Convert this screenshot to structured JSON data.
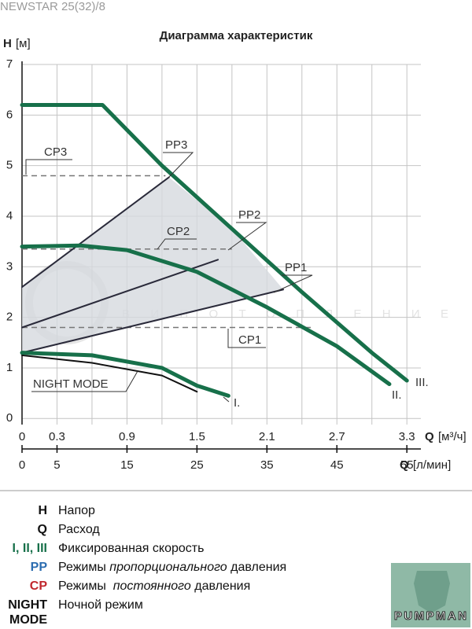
{
  "header": "NEWSTAR 25(32)/8",
  "chart_data": {
    "type": "line",
    "title": "Диаграмма характеристик",
    "ylabel": "H",
    "yunit": "[м]",
    "xlabel": "Q",
    "xunit": "[м³/ч]",
    "x2label": "Q",
    "x2unit": "[л/мин]",
    "xlim": [
      0,
      3.42
    ],
    "ylim": [
      -0.12,
      7
    ],
    "x2lim": [
      0,
      57
    ],
    "xticks": [
      0,
      0.3,
      0.9,
      1.5,
      2.1,
      2.7,
      3.3
    ],
    "x2ticks": [
      0,
      5,
      15,
      25,
      35,
      45,
      55
    ],
    "yticks": [
      0,
      1,
      2,
      3,
      4,
      5,
      6,
      7
    ],
    "xgrid_step": 0.3,
    "grid": true,
    "region_color": "#d6d9df",
    "series": [
      {
        "name": "III.",
        "color": "#17704a",
        "dashed": false,
        "width": 5,
        "x": [
          0,
          0.69,
          1.2,
          1.8,
          2.4,
          3.0,
          3.3
        ],
        "values": [
          6.2,
          6.2,
          5.0,
          3.75,
          2.5,
          1.3,
          0.75
        ]
      },
      {
        "name": "II.",
        "color": "#17704a",
        "dashed": false,
        "width": 5,
        "x": [
          0,
          0.5,
          0.9,
          1.5,
          2.1,
          2.7,
          3.15
        ],
        "values": [
          3.4,
          3.42,
          3.33,
          2.9,
          2.2,
          1.43,
          0.68
        ]
      },
      {
        "name": "I.",
        "color": "#17704a",
        "dashed": false,
        "width": 5,
        "x": [
          0,
          0.6,
          1.2,
          1.5,
          1.77
        ],
        "values": [
          1.3,
          1.25,
          1.0,
          0.65,
          0.45
        ]
      },
      {
        "name": "NIGHT MODE",
        "color": "#111111",
        "dashed": false,
        "width": 2,
        "x": [
          0,
          0.6,
          1.2,
          1.5
        ],
        "values": [
          1.25,
          1.1,
          0.85,
          0.53
        ]
      },
      {
        "name": "PP3",
        "color": "#2a2a3a",
        "dashed": false,
        "width": 2,
        "x": [
          0,
          1.26
        ],
        "values": [
          2.6,
          4.77
        ]
      },
      {
        "name": "PP2",
        "color": "#2a2a3a",
        "dashed": false,
        "width": 2,
        "x": [
          0,
          1.68
        ],
        "values": [
          1.8,
          3.14
        ]
      },
      {
        "name": "PP1",
        "color": "#2a2a3a",
        "dashed": false,
        "width": 2,
        "x": [
          0,
          2.24
        ],
        "values": [
          1.3,
          2.55
        ]
      },
      {
        "name": "CP3",
        "color": "#777777",
        "dashed": true,
        "width": 1.5,
        "x": [
          0,
          1.23
        ],
        "values": [
          4.8,
          4.8
        ]
      },
      {
        "name": "CP2",
        "color": "#777777",
        "dashed": true,
        "width": 1.5,
        "x": [
          0,
          1.8
        ],
        "values": [
          3.35,
          3.35
        ]
      },
      {
        "name": "CP1",
        "color": "#777777",
        "dashed": true,
        "width": 1.5,
        "x": [
          0,
          2.5
        ],
        "values": [
          1.8,
          1.8
        ]
      }
    ]
  },
  "legend": [
    {
      "key": "H",
      "color": "#111111",
      "text": [
        "Напор"
      ]
    },
    {
      "key": "Q",
      "color": "#111111",
      "text": [
        "Расход"
      ]
    },
    {
      "key": "I, II, III",
      "color": "#17704a",
      "text": [
        "Фиксированная скорость"
      ]
    },
    {
      "key": "PP",
      "color": "#2b6cb0",
      "text": [
        "Режимы ",
        "пропорционального",
        " давления"
      ],
      "italic_part": 1
    },
    {
      "key": "CP",
      "color": "#c0272d",
      "text": [
        "Режимы  ",
        "постоянного",
        " давления"
      ],
      "italic_part": 1
    },
    {
      "key": "NIGHT MODE",
      "color": "#111111",
      "text": [
        "Ночной режим"
      ]
    }
  ],
  "watermark": "ВИПОТОПЛЕНИЕ",
  "logo": "PUMPMAN"
}
